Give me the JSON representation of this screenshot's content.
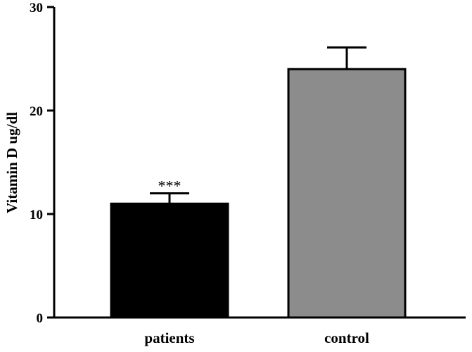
{
  "chart_data": {
    "type": "bar",
    "categories": [
      "patients",
      "control"
    ],
    "values": [
      11.0,
      24.0
    ],
    "errors": [
      1.0,
      2.1
    ],
    "colors": [
      "#000000",
      "#8c8c8c"
    ],
    "annotations": [
      "***",
      ""
    ],
    "ylabel": "Vitamin D ug/dl",
    "xlabel": "",
    "title": "",
    "ylim": [
      0,
      30
    ],
    "yticks": [
      0,
      10,
      20,
      30
    ],
    "grid": false,
    "legend": "none"
  }
}
